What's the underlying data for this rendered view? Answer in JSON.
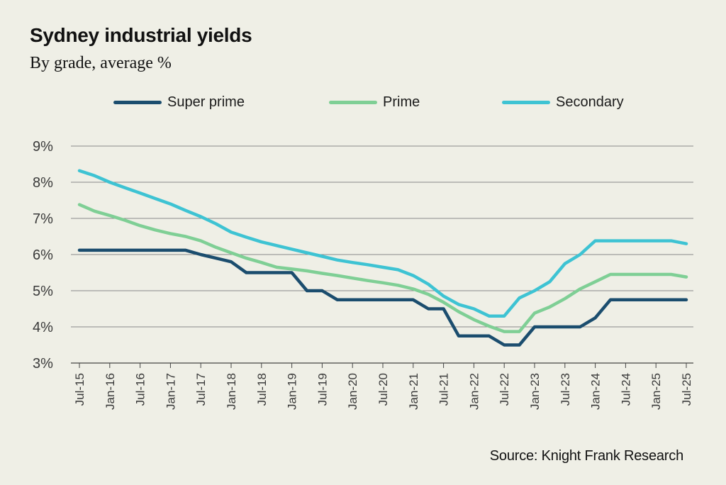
{
  "title": "Sydney industrial yields",
  "subtitle": "By grade, average %",
  "source": "Source: Knight Frank Research",
  "colors": {
    "background": "#efefe6",
    "super_prime": "#1b4d6e",
    "prime": "#7fcf95",
    "secondary": "#3ec3d3",
    "grid": "#8a8a8a"
  },
  "chart_data": {
    "type": "line",
    "title": "Sydney industrial yields",
    "subtitle": "By grade, average %",
    "xlabel": "",
    "ylabel": "",
    "ylim": [
      3,
      9
    ],
    "yticks": [
      "3%",
      "4%",
      "5%",
      "6%",
      "7%",
      "8%",
      "9%"
    ],
    "grid": true,
    "legend": "top",
    "x_tick_labels": [
      "Jul-15",
      "Jan-16",
      "Jul-16",
      "Jan-17",
      "Jul-17",
      "Jan-18",
      "Jul-18",
      "Jan-19",
      "Jul-19",
      "Jan-20",
      "Jul-20",
      "Jan-21",
      "Jul-21",
      "Jan-22",
      "Jul-22",
      "Jan-23",
      "Jul-23",
      "Jan-24",
      "Jul-24",
      "Jan-25",
      "Jul-25"
    ],
    "x": [
      "Jul-15",
      "Oct-15",
      "Jan-16",
      "Apr-16",
      "Jul-16",
      "Oct-16",
      "Jan-17",
      "Apr-17",
      "Jul-17",
      "Oct-17",
      "Jan-18",
      "Apr-18",
      "Jul-18",
      "Oct-18",
      "Jan-19",
      "Apr-19",
      "Jul-19",
      "Oct-19",
      "Jan-20",
      "Apr-20",
      "Jul-20",
      "Oct-20",
      "Jan-21",
      "Apr-21",
      "Jul-21",
      "Oct-21",
      "Jan-22",
      "Apr-22",
      "Jul-22",
      "Oct-22",
      "Jan-23",
      "Apr-23",
      "Jul-23",
      "Oct-23",
      "Jan-24",
      "Apr-24",
      "Jul-24",
      "Oct-24",
      "Jan-25",
      "Apr-25",
      "Jul-25"
    ],
    "series": [
      {
        "name": "Super prime",
        "color": "#1b4d6e",
        "values": [
          6.12,
          6.12,
          6.12,
          6.12,
          6.12,
          6.12,
          6.12,
          6.12,
          6.0,
          5.9,
          5.8,
          5.5,
          5.5,
          5.5,
          5.5,
          5.0,
          5.0,
          4.75,
          4.75,
          4.75,
          4.75,
          4.75,
          4.75,
          4.5,
          4.5,
          3.75,
          3.75,
          3.75,
          3.5,
          3.5,
          4.0,
          4.0,
          4.0,
          4.0,
          4.25,
          4.75,
          4.75,
          4.75,
          4.75,
          4.75,
          4.75
        ]
      },
      {
        "name": "Prime",
        "color": "#7fcf95",
        "values": [
          7.38,
          7.2,
          7.08,
          6.95,
          6.8,
          6.68,
          6.58,
          6.5,
          6.38,
          6.2,
          6.05,
          5.9,
          5.78,
          5.65,
          5.6,
          5.55,
          5.48,
          5.42,
          5.35,
          5.28,
          5.22,
          5.15,
          5.05,
          4.9,
          4.68,
          4.42,
          4.2,
          4.02,
          3.87,
          3.87,
          4.38,
          4.55,
          4.78,
          5.05,
          5.25,
          5.45,
          5.45,
          5.45,
          5.45,
          5.45,
          5.38
        ]
      },
      {
        "name": "Secondary",
        "color": "#3ec3d3",
        "values": [
          8.32,
          8.18,
          8.0,
          7.85,
          7.7,
          7.55,
          7.4,
          7.22,
          7.05,
          6.85,
          6.62,
          6.48,
          6.35,
          6.25,
          6.15,
          6.05,
          5.95,
          5.85,
          5.78,
          5.72,
          5.65,
          5.58,
          5.42,
          5.18,
          4.85,
          4.62,
          4.5,
          4.3,
          4.3,
          4.8,
          5.0,
          5.25,
          5.75,
          6.0,
          6.38,
          6.38,
          6.38,
          6.38,
          6.38,
          6.38,
          6.3
        ]
      }
    ]
  }
}
